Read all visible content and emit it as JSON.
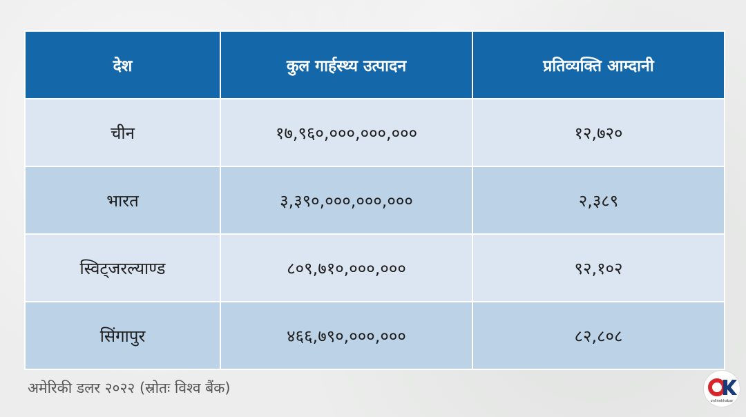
{
  "table": {
    "headers": [
      "देश",
      "कुल गार्हस्थ्य उत्पादन",
      "प्रतिव्यक्ति आम्दानी"
    ],
    "rows": [
      [
        "चीन",
        "१७,९६०,०००,०००,०००",
        "१२,७२०"
      ],
      [
        "भारत",
        "३,३९०,०००,०००,०००",
        "२,३८९"
      ],
      [
        "स्विट्जरल्याण्ड",
        "८०९,७१०,०००,०००",
        "९२,१०२"
      ],
      [
        "सिंगापुर",
        "४६६,७९०,०००,०००",
        "८२,८०८"
      ]
    ]
  },
  "footnote": "अमेरिकी डलर २०२२ (स्रोतः विश्व बैंक)",
  "logo": {
    "icon": "onlinekhabar-ok-logo",
    "text": "OK",
    "subtext": "onlinekhabar",
    "colors": {
      "o": "#d7262b",
      "k": "#1a3b7a"
    }
  },
  "colors": {
    "header_bg": "#1467a8",
    "row_light": "#dbe6f2",
    "row_dark": "#bcd2e6",
    "background": "#ecedec"
  }
}
